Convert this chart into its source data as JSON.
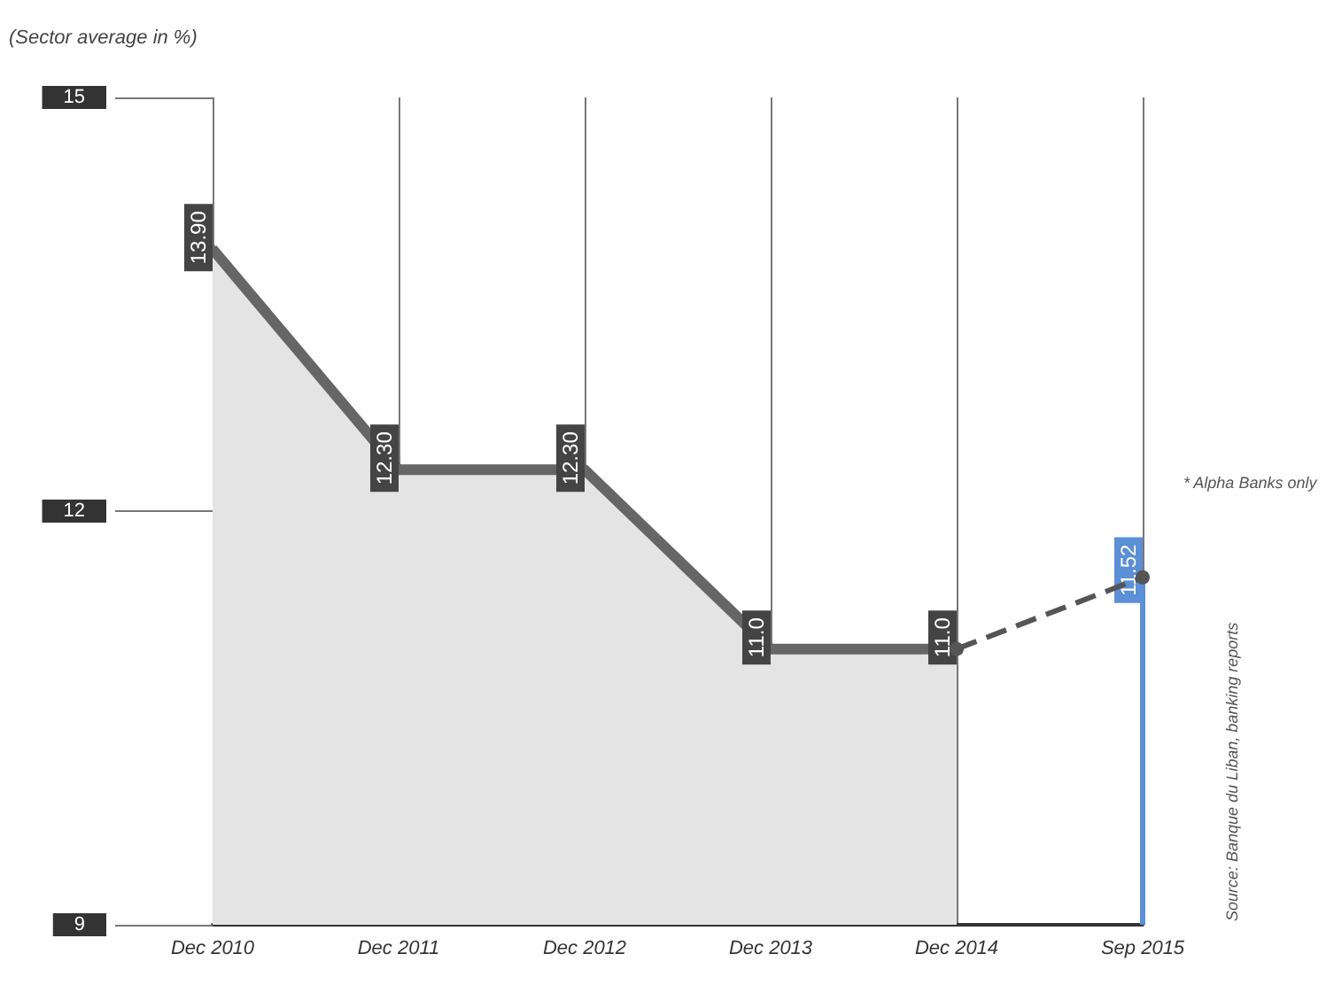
{
  "chart_data": {
    "type": "area",
    "ylabel": "(Sector average in %)",
    "categories": [
      "Dec 2010",
      "Dec 2011",
      "Dec 2012",
      "Dec 2013",
      "Dec 2014",
      "Sep 2015"
    ],
    "series": [
      {
        "color": "#666666",
        "values": [
          13.9,
          12.3,
          12.3,
          11.0,
          11.0,
          null
        ],
        "value_labels": [
          "13.90",
          "12.30",
          "12.30",
          "11.0",
          "11.0",
          null
        ]
      },
      {
        "type": "line",
        "line_style": "dashed",
        "color": "#555555",
        "values": [
          null,
          null,
          null,
          null,
          11.0,
          11.52
        ]
      },
      {
        "type": "bar",
        "color": "#5b8fd6",
        "values": [
          null,
          null,
          null,
          null,
          null,
          11.52
        ],
        "value_labels": [
          null,
          null,
          null,
          null,
          null,
          "11.52"
        ]
      }
    ],
    "ylim": [
      9,
      15
    ],
    "yticks": [
      9,
      12,
      15
    ],
    "grid": "x",
    "marker": "circle",
    "annotations": [
      "* Alpha Banks only",
      "Source: Banque du Liban, banking reports"
    ]
  }
}
